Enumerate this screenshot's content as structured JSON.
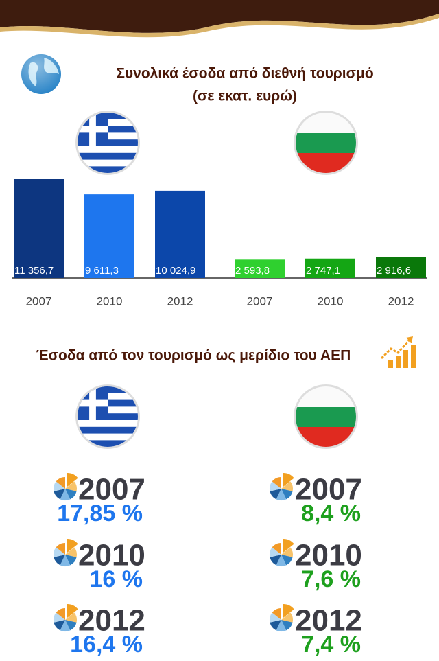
{
  "title": "Συνολικά έσοδα από διεθνή τουρισμό",
  "subtitle": "(σε εκατ. ευρώ)",
  "chart_data": [
    {
      "type": "bar",
      "categories": [
        "2007",
        "2010",
        "2012"
      ],
      "values": [
        11356.7,
        9611.3,
        10024.9
      ],
      "value_labels": [
        "11 356,7",
        "9 611,3",
        "10 024,9"
      ],
      "colors": [
        "#0d3680",
        "#1e76ee",
        "#0c47aa"
      ]
    },
    {
      "type": "bar",
      "categories": [
        "2007",
        "2010",
        "2012"
      ],
      "values": [
        2593.8,
        2747.1,
        2916.6
      ],
      "value_labels": [
        "2 593,8",
        "2 747,1",
        "2 916,6"
      ],
      "colors": [
        "#2fd02f",
        "#14a614",
        "#0a780a"
      ]
    }
  ],
  "gdp_title": "Έσοδα από τον τουρισμό ως μερίδιο του ΑΕΠ",
  "gdp": [
    {
      "color": "#1e76ee",
      "entries": [
        {
          "year": "2007",
          "share": "17,85 %"
        },
        {
          "year": "2010",
          "share": "16 %"
        },
        {
          "year": "2012",
          "share": "16,4 %"
        }
      ]
    },
    {
      "color": "#1ea01e",
      "entries": [
        {
          "year": "2007",
          "share": "8,4 %"
        },
        {
          "year": "2010",
          "share": "7,6 %"
        },
        {
          "year": "2012",
          "share": "7,4 %"
        }
      ]
    }
  ]
}
